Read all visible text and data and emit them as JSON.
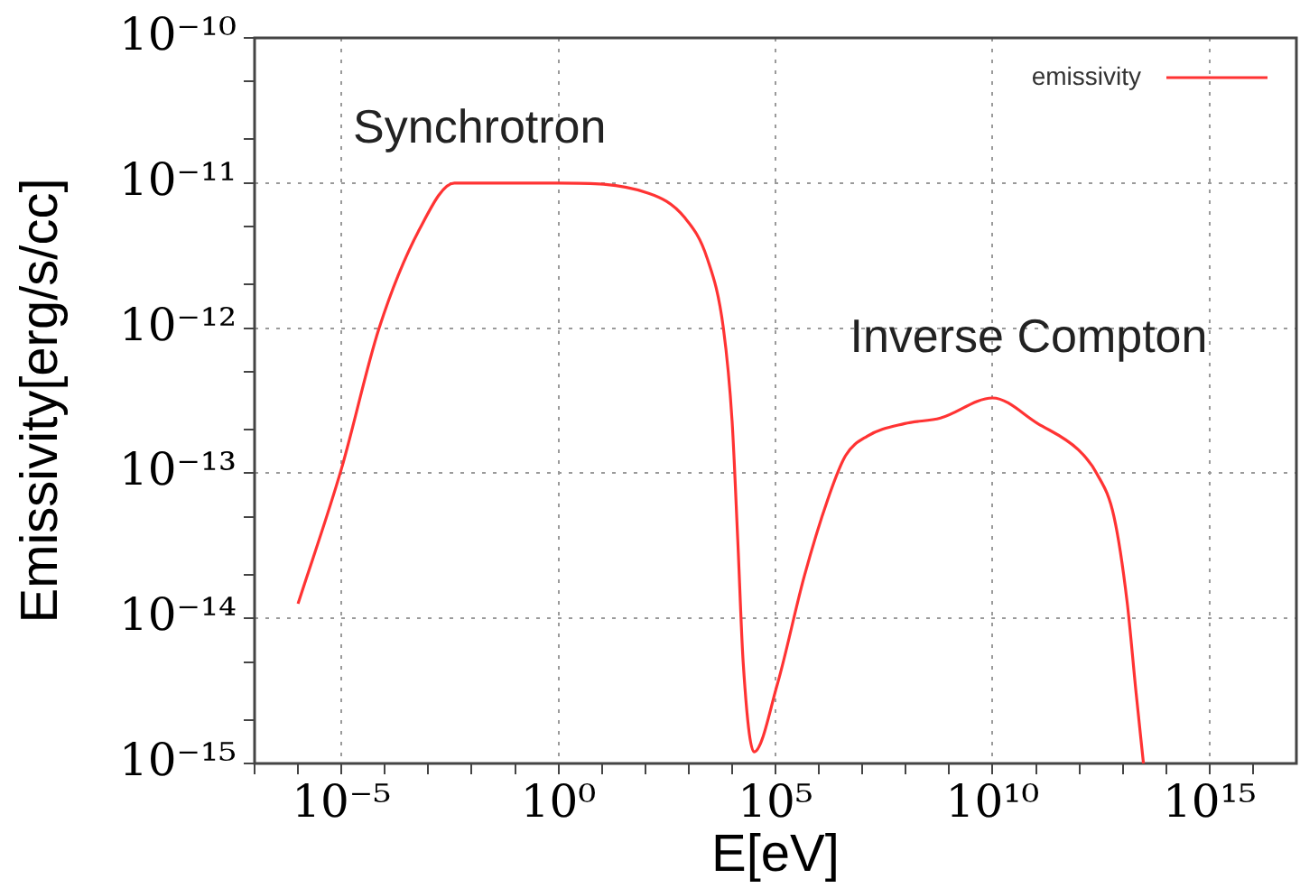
{
  "chart_data": {
    "type": "line",
    "xlabel": "E[eV]",
    "ylabel": "Emissivity[erg/s/cc]",
    "log": "xy",
    "grid": true,
    "legend": "top right",
    "xlim": [
      1e-07,
      1e+17
    ],
    "ylim": [
      1e-15,
      1e-10
    ],
    "xticks": [
      {
        "value": 1e-07,
        "label": null
      },
      {
        "value": 1e-06,
        "label": null
      },
      {
        "value": 1e-05,
        "label": "10⁻⁵"
      },
      {
        "value": 0.0001,
        "label": null
      },
      {
        "value": 0.001,
        "label": null
      },
      {
        "value": 0.01,
        "label": null
      },
      {
        "value": 0.1,
        "label": null
      },
      {
        "value": 1,
        "label": "10⁰"
      },
      {
        "value": 10.0,
        "label": null
      },
      {
        "value": 100.0,
        "label": null
      },
      {
        "value": 1000.0,
        "label": null
      },
      {
        "value": 10000.0,
        "label": null
      },
      {
        "value": 100000.0,
        "label": "10⁵"
      },
      {
        "value": 1000000.0,
        "label": null
      },
      {
        "value": 10000000.0,
        "label": null
      },
      {
        "value": 100000000.0,
        "label": null
      },
      {
        "value": 1000000000.0,
        "label": null
      },
      {
        "value": 10000000000.0,
        "label": "10¹⁰"
      },
      {
        "value": 100000000000.0,
        "label": null
      },
      {
        "value": 1000000000000.0,
        "label": null
      },
      {
        "value": 10000000000000.0,
        "label": null
      },
      {
        "value": 100000000000000.0,
        "label": null
      },
      {
        "value": 1000000000000000.0,
        "label": "10¹⁵"
      },
      {
        "value": 1e+16,
        "label": null
      }
    ],
    "yticks": [
      {
        "value": 1e-15,
        "label": "10⁻¹⁵"
      },
      {
        "value": 2e-15,
        "label": null
      },
      {
        "value": 5e-15,
        "label": null
      },
      {
        "value": 1e-14,
        "label": "10⁻¹⁴"
      },
      {
        "value": 2e-14,
        "label": null
      },
      {
        "value": 5e-14,
        "label": null
      },
      {
        "value": 1e-13,
        "label": "10⁻¹³"
      },
      {
        "value": 2e-13,
        "label": null
      },
      {
        "value": 5e-13,
        "label": null
      },
      {
        "value": 1e-12,
        "label": "10⁻¹²"
      },
      {
        "value": 2e-12,
        "label": null
      },
      {
        "value": 5e-12,
        "label": null
      },
      {
        "value": 1e-11,
        "label": "10⁻¹¹"
      },
      {
        "value": 2e-11,
        "label": null
      },
      {
        "value": 5e-11,
        "label": null
      },
      {
        "value": 1e-10,
        "label": "10⁻¹⁰"
      }
    ],
    "x": [
      1e-06,
      1e-05,
      7.4e-05,
      0.00063,
      0.004,
      1,
      120,
      800,
      2700,
      6300,
      10000.0,
      13500,
      18000,
      32000,
      110000.0,
      460000.0,
      1600000.0,
      4100000.0,
      13000000.0,
      95000000.0,
      630000000.0,
      10000000000.0,
      110000000000.0,
      950000000000.0,
      2500000000000.0,
      6300000000000.0,
      12600000000000.0,
      20000000000000.0,
      30000000000000.0
    ],
    "series": [
      {
        "name": "emissivity",
        "color": "#ff3333",
        "values": [
          1.26e-14,
          1.07e-13,
          1e-12,
          4.8e-12,
          1e-11,
          1e-11,
          8.5e-12,
          5.8e-12,
          3e-12,
          1e-12,
          2.3e-13,
          3.5e-14,
          5e-15,
          1.2e-15,
          3.5e-15,
          1.95e-14,
          6.6e-14,
          1.32e-13,
          1.8e-13,
          2.2e-13,
          2.4e-13,
          3.3e-13,
          2.2e-13,
          1.45e-13,
          1e-13,
          5e-14,
          1.3e-14,
          3.2e-15,
          1e-15
        ]
      }
    ],
    "annotations": [
      "Synchrotron",
      "Inverse Compton"
    ]
  }
}
